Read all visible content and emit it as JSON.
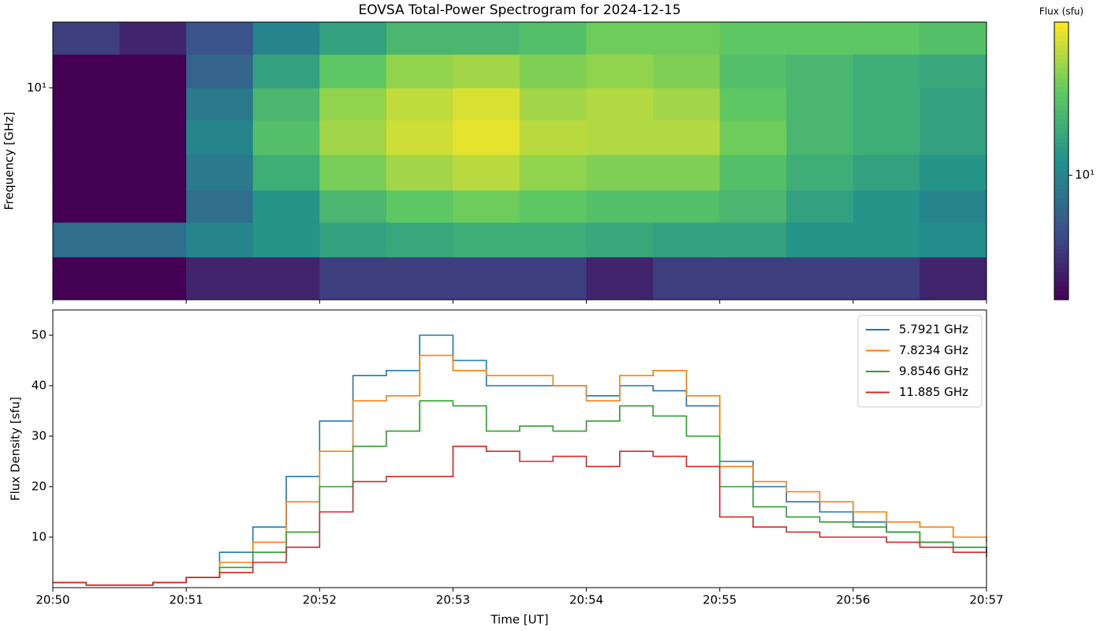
{
  "chart_data": [
    {
      "type": "heatmap",
      "title": "EOVSA Total-Power Spectrogram for 2024-12-15",
      "y_label": "Frequency [GHz]",
      "colorbar_label": "Flux (sfu)",
      "xlim": [
        "20:50",
        "20:57"
      ],
      "xticks": [
        "20:50",
        "20:51",
        "20:52",
        "20:53",
        "20:54",
        "20:55",
        "20:56",
        "20:57"
      ],
      "ylim": [
        1.5,
        18
      ],
      "yscale": "log",
      "yticks": [
        {
          "value": 10,
          "label": "10¹"
        }
      ],
      "clim": [
        3,
        44
      ],
      "cscale": "log",
      "cticks": [
        {
          "value": 10,
          "label": "10¹"
        }
      ],
      "colormap": "viridis",
      "x_edges": [
        "20:50:00",
        "20:50:30",
        "20:51:00",
        "20:51:30",
        "20:52:00",
        "20:52:30",
        "20:53:00",
        "20:53:30",
        "20:54:00",
        "20:54:30",
        "20:55:00",
        "20:55:30",
        "20:56:00",
        "20:56:30",
        "20:57:00"
      ],
      "y_edges": [
        1.5,
        2.2,
        3,
        4,
        5.5,
        7.5,
        10,
        13.5,
        18
      ],
      "z": [
        [
          3,
          3,
          4,
          4,
          5,
          5,
          5,
          5,
          4,
          5,
          5,
          5,
          5,
          4
        ],
        [
          8,
          8,
          10,
          12,
          14,
          15,
          16,
          16,
          15,
          14,
          14,
          12,
          12,
          11
        ],
        [
          3,
          3,
          8,
          12,
          18,
          22,
          24,
          22,
          20,
          20,
          18,
          14,
          12,
          10
        ],
        [
          3,
          3,
          9,
          16,
          25,
          30,
          33,
          28,
          26,
          26,
          20,
          16,
          14,
          12
        ],
        [
          3,
          3,
          10,
          20,
          30,
          36,
          40,
          33,
          32,
          32,
          24,
          18,
          16,
          14
        ],
        [
          3,
          3,
          9,
          18,
          28,
          34,
          38,
          30,
          32,
          30,
          22,
          18,
          16,
          14
        ],
        [
          3,
          3,
          7,
          14,
          22,
          28,
          30,
          26,
          28,
          26,
          20,
          18,
          16,
          15
        ],
        [
          5,
          4,
          6,
          10,
          14,
          18,
          18,
          20,
          24,
          24,
          22,
          22,
          22,
          20
        ]
      ]
    },
    {
      "type": "step",
      "x_label": "Time [UT]",
      "y_label": "Flux Density [sfu]",
      "xlim": [
        "20:50",
        "20:57"
      ],
      "xticks": [
        "20:50",
        "20:51",
        "20:52",
        "20:53",
        "20:54",
        "20:55",
        "20:56",
        "20:57"
      ],
      "ylim": [
        0,
        55
      ],
      "yticks": [
        10,
        20,
        30,
        40,
        50
      ],
      "legend": "upper right",
      "x": [
        "20:50:00",
        "20:50:15",
        "20:50:30",
        "20:50:45",
        "20:51:00",
        "20:51:15",
        "20:51:30",
        "20:51:45",
        "20:52:00",
        "20:52:15",
        "20:52:30",
        "20:52:45",
        "20:53:00",
        "20:53:15",
        "20:53:30",
        "20:53:45",
        "20:54:00",
        "20:54:15",
        "20:54:30",
        "20:54:45",
        "20:55:00",
        "20:55:15",
        "20:55:30",
        "20:55:45",
        "20:56:00",
        "20:56:15",
        "20:56:30",
        "20:56:45",
        "20:57:00"
      ],
      "series": [
        {
          "name": "5.7921 GHz",
          "color": "#1f77b4",
          "values": [
            1,
            0.5,
            0.5,
            1,
            2,
            7,
            12,
            22,
            33,
            42,
            43,
            50,
            45,
            40,
            40,
            40,
            38,
            40,
            39,
            36,
            25,
            20,
            17,
            15,
            13,
            11,
            9,
            8,
            7
          ]
        },
        {
          "name": "7.8234 GHz",
          "color": "#ff7f0e",
          "values": [
            1,
            0.5,
            0.5,
            1,
            2,
            5,
            9,
            17,
            27,
            37,
            38,
            46,
            43,
            42,
            42,
            40,
            37,
            42,
            43,
            38,
            24,
            21,
            19,
            17,
            15,
            13,
            12,
            10,
            9
          ]
        },
        {
          "name": "9.8546 GHz",
          "color": "#2ca02c",
          "values": [
            1,
            0.5,
            0.5,
            1,
            2,
            4,
            7,
            11,
            20,
            28,
            31,
            37,
            36,
            31,
            32,
            31,
            33,
            36,
            34,
            30,
            20,
            16,
            14,
            13,
            12,
            11,
            9,
            8,
            7
          ]
        },
        {
          "name": "11.885 GHz",
          "color": "#d62728",
          "values": [
            1,
            0.5,
            0.5,
            1,
            2,
            3,
            5,
            8,
            15,
            21,
            22,
            22,
            28,
            27,
            25,
            26,
            24,
            27,
            26,
            24,
            14,
            12,
            11,
            10,
            10,
            9,
            8,
            7,
            6
          ]
        }
      ]
    }
  ]
}
